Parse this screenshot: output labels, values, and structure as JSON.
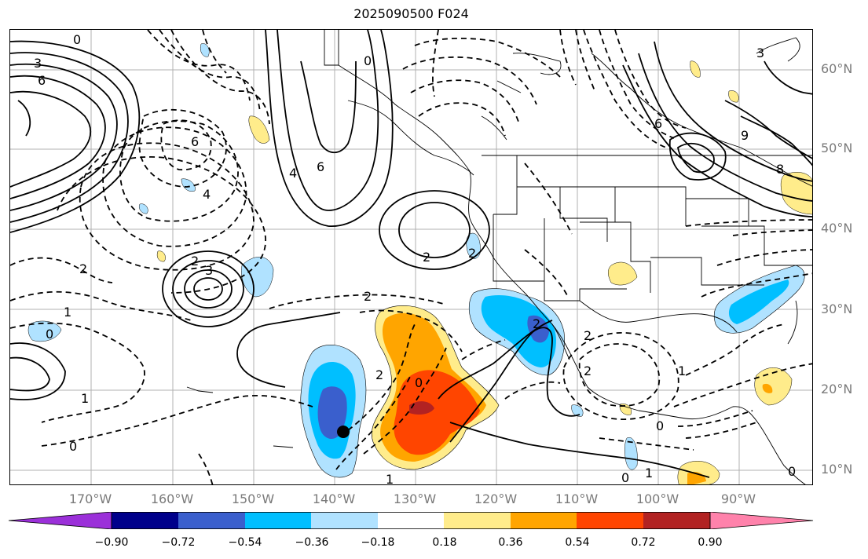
{
  "title": "2025090500 F024",
  "map": {
    "lat_labels": [
      "60°N",
      "50°N",
      "40°N",
      "30°N",
      "20°N",
      "10°N"
    ],
    "lon_labels": [
      "170°W",
      "160°W",
      "150°W",
      "140°W",
      "130°W",
      "120°W",
      "110°W",
      "100°W",
      "90°W"
    ],
    "contour_labels": [
      "3",
      "6",
      "0",
      "2",
      "4",
      "6",
      "6",
      "4",
      "0",
      "2",
      "2",
      "3",
      "1",
      "2",
      "0",
      "0",
      "1",
      "2",
      "1",
      "2",
      "0",
      "2",
      "2",
      "2",
      "0",
      "1",
      "0",
      "1",
      "0",
      "6",
      "9",
      "8",
      "3"
    ],
    "marker": "storm-center"
  },
  "colorbar": {
    "ticks": [
      "−0.90",
      "−0.72",
      "−0.54",
      "−0.36",
      "−0.18",
      "0.18",
      "0.36",
      "0.54",
      "0.72",
      "0.90"
    ],
    "colors": [
      "#9b30d9",
      "#00008b",
      "#3a5fcd",
      "#00bfff",
      "#b0e2ff",
      "#ffffff",
      "#ffec8b",
      "#ffa500",
      "#ff4500",
      "#b22222",
      "#ff82ab"
    ]
  }
}
